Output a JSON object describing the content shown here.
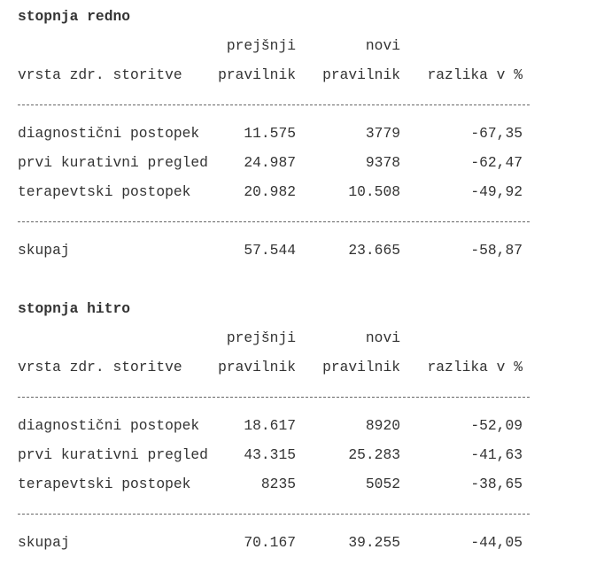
{
  "sections": [
    {
      "title": "stopnja redno",
      "header_top": [
        "prejšnji",
        "novi"
      ],
      "header": [
        "vrsta zdr. storitve",
        "pravilnik",
        "pravilnik",
        "razlika v %"
      ],
      "rows": [
        [
          "diagnostični postopek",
          "11.575",
          "3779",
          "-67,35"
        ],
        [
          "prvi kurativni pregled",
          "24.987",
          "9378",
          "-62,47"
        ],
        [
          "terapevtski postopek",
          "20.982",
          "10.508",
          "-49,92"
        ]
      ],
      "total": [
        "skupaj",
        "57.544",
        "23.665",
        "-58,87"
      ]
    },
    {
      "title": "stopnja hitro",
      "header_top": [
        "prejšnji",
        "novi"
      ],
      "header": [
        "vrsta zdr. storitve",
        "pravilnik",
        "pravilnik",
        "razlika v %"
      ],
      "rows": [
        [
          "diagnostični postopek",
          "18.617",
          "8920",
          "-52,09"
        ],
        [
          "prvi kurativni pregled",
          "43.315",
          "25.283",
          "-41,63"
        ],
        [
          "terapevtski postopek",
          "8235",
          "5052",
          "-38,65"
        ]
      ],
      "total": [
        "skupaj",
        "70.167",
        "39.255",
        "-44,05"
      ]
    }
  ]
}
